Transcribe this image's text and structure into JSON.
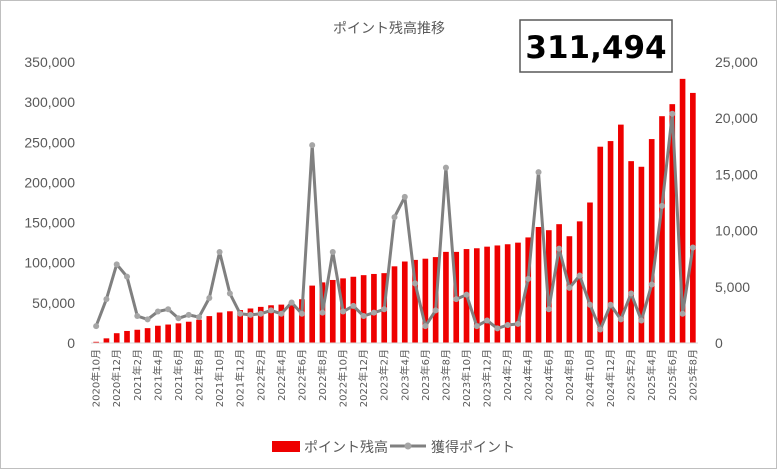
{
  "chart_data": {
    "type": "bar",
    "title": "ポイント残高推移",
    "callout": "311,494",
    "categories": [
      "2020年10月",
      "2020年11月",
      "2020年12月",
      "2021年1月",
      "2021年2月",
      "2021年3月",
      "2021年4月",
      "2021年5月",
      "2021年6月",
      "2021年7月",
      "2021年8月",
      "2021年9月",
      "2021年10月",
      "2021年11月",
      "2021年12月",
      "2022年1月",
      "2022年2月",
      "2022年3月",
      "2022年4月",
      "2022年5月",
      "2022年6月",
      "2022年7月",
      "2022年8月",
      "2022年9月",
      "2022年10月",
      "2022年11月",
      "2022年12月",
      "2023年1月",
      "2023年2月",
      "2023年3月",
      "2023年4月",
      "2023年5月",
      "2023年6月",
      "2023年7月",
      "2023年8月",
      "2023年9月",
      "2023年10月",
      "2023年11月",
      "2023年12月",
      "2024年1月",
      "2024年2月",
      "2024年3月",
      "2024年4月",
      "2024年5月",
      "2024年6月",
      "2024年7月",
      "2024年8月",
      "2024年9月",
      "2024年10月",
      "2024年11月",
      "2024年12月",
      "2025年1月",
      "2025年2月",
      "2025年3月",
      "2025年4月",
      "2025年5月",
      "2025年6月",
      "2025年7月",
      "2025年8月"
    ],
    "tick_labels": [
      "2020年10月",
      "2020年12月",
      "2021年2月",
      "2021年4月",
      "2021年6月",
      "2021年8月",
      "2021年10月",
      "2021年12月",
      "2022年2月",
      "2022年4月",
      "2022年6月",
      "2022年8月",
      "2022年10月",
      "2022年12月",
      "2023年2月",
      "2023年4月",
      "2023年6月",
      "2023年8月",
      "2023年10月",
      "2023年12月",
      "2024年2月",
      "2024年4月",
      "2024年6月",
      "2024年8月",
      "2024年10月",
      "2024年12月",
      "2025年2月",
      "2025年4月",
      "2025年6月",
      "2025年8月"
    ],
    "series": [
      {
        "name": "ポイント残高",
        "type": "bar",
        "axis": "left",
        "color": "#ee0000",
        "values": [
          1500,
          5800,
          12200,
          15000,
          16500,
          18500,
          21500,
          23000,
          24500,
          26500,
          29000,
          33500,
          38000,
          39500,
          41000,
          43000,
          45000,
          47000,
          47800,
          51000,
          54500,
          71500,
          75500,
          78500,
          80500,
          82500,
          84500,
          86000,
          87000,
          95500,
          101500,
          103500,
          105000,
          107000,
          113500,
          113500,
          117000,
          118000,
          120000,
          121500,
          123000,
          125000,
          131500,
          144500,
          140500,
          148000,
          133000,
          151500,
          175000,
          244500,
          251500,
          272000,
          226500,
          219500,
          254000,
          282500,
          297500,
          329000,
          311494
        ]
      },
      {
        "name": "獲得ポイント",
        "type": "line",
        "axis": "right",
        "color": "#808080",
        "marker_color": "#a6a6a6",
        "values": [
          1500,
          3900,
          7000,
          5900,
          2400,
          2100,
          2800,
          3000,
          2200,
          2500,
          2300,
          4000,
          8100,
          4400,
          2600,
          2500,
          2600,
          2900,
          2600,
          3600,
          2600,
          17600,
          2700,
          8100,
          2800,
          3300,
          2400,
          2700,
          3000,
          11200,
          13000,
          5300,
          1500,
          2900,
          15600,
          3900,
          4300,
          1500,
          2000,
          1300,
          1600,
          1700,
          5700,
          15200,
          3000,
          8400,
          4900,
          6000,
          3400,
          1200,
          3400,
          2100,
          4400,
          2000,
          5200,
          12200,
          20400,
          2600,
          8500
        ]
      }
    ],
    "y_left": {
      "min": 0,
      "max": 350000,
      "step": 50000,
      "tick_labels": [
        "0",
        "50,000",
        "100,000",
        "150,000",
        "200,000",
        "250,000",
        "300,000",
        "350,000"
      ]
    },
    "y_right": {
      "min": 0,
      "max": 25000,
      "step": 5000,
      "tick_labels": [
        "0",
        "5,000",
        "10,000",
        "15,000",
        "20,000",
        "25,000"
      ]
    },
    "grid": false,
    "legend_position": "bottom"
  }
}
